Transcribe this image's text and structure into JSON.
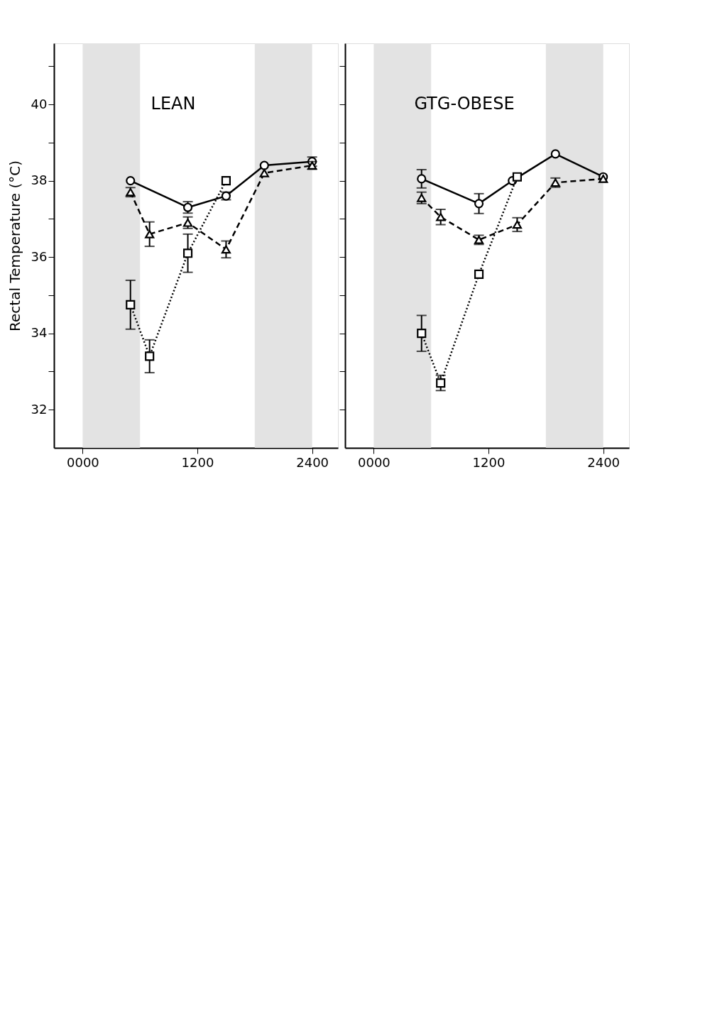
{
  "chart_data": [
    {
      "type": "line",
      "title": "LEAN",
      "ylabel": "Rectal Temperature (°C)",
      "xlim": [
        -300,
        2670
      ],
      "ylim": [
        31,
        41.6
      ],
      "xticks": [
        {
          "value": 0,
          "label": "0000"
        },
        1200,
        2400
      ],
      "yticks": [
        32,
        {
          "value": 33,
          "label": null
        },
        34,
        {
          "value": 35,
          "label": null
        },
        36,
        {
          "value": 37,
          "label": null
        },
        38,
        {
          "value": 39,
          "label": null
        },
        40,
        {
          "value": 41,
          "label": null
        }
      ],
      "grid": false,
      "bands": [
        {
          "axis": "x",
          "from": 0,
          "to": 600,
          "color": "#e3e3e3"
        },
        {
          "axis": "x",
          "from": 1800,
          "to": 2400,
          "color": "#e3e3e3"
        }
      ],
      "series": [
        {
          "color": "#000000",
          "marker": "circle",
          "line_style": "solid",
          "x": [
            500,
            1100,
            1500,
            1900,
            2400
          ],
          "values": [
            38.0,
            37.3,
            37.6,
            38.4,
            38.5
          ],
          "errors": [
            null,
            0.15,
            0.1,
            null,
            0.12
          ]
        },
        {
          "color": "#000000",
          "marker": "triangle",
          "line_style": "dashed",
          "x": [
            500,
            700,
            1100,
            1500,
            1900,
            2400
          ],
          "values": [
            37.7,
            36.6,
            36.9,
            36.2,
            38.2,
            38.4
          ],
          "errors": [
            0.12,
            0.32,
            0.15,
            0.22,
            null,
            0.1
          ]
        },
        {
          "color": "#000000",
          "marker": "square",
          "line_style": "dotted",
          "x": [
            500,
            700,
            1100,
            1500
          ],
          "values": [
            34.75,
            33.4,
            36.1,
            38.0
          ],
          "errors": [
            0.64,
            0.43,
            0.5,
            null
          ]
        }
      ]
    },
    {
      "type": "line",
      "title": "GTG-OBESE",
      "xlim": [
        -300,
        2670
      ],
      "ylim": [
        31,
        41.6
      ],
      "xticks": [
        {
          "value": 0,
          "label": "0000"
        },
        1200,
        2400
      ],
      "yticks": [
        32,
        33,
        34,
        35,
        36,
        37,
        38,
        39,
        40,
        41
      ],
      "tick_labels": "x",
      "grid": false,
      "bands": [
        {
          "axis": "x",
          "from": 0,
          "to": 600,
          "color": "#e3e3e3"
        },
        {
          "axis": "x",
          "from": 1800,
          "to": 2400,
          "color": "#e3e3e3"
        }
      ],
      "series": [
        {
          "color": "#000000",
          "marker": "circle",
          "line_style": "solid",
          "x": [
            500,
            1100,
            1450,
            1900,
            2400
          ],
          "values": [
            38.05,
            37.4,
            38.0,
            38.7,
            38.1
          ],
          "errors": [
            0.24,
            0.26,
            null,
            null,
            null
          ]
        },
        {
          "color": "#000000",
          "marker": "triangle",
          "line_style": "dashed",
          "x": [
            500,
            700,
            1100,
            1500,
            1900,
            2400
          ],
          "values": [
            37.55,
            37.05,
            36.45,
            36.85,
            37.95,
            38.05
          ],
          "errors": [
            0.15,
            0.2,
            0.12,
            0.18,
            0.12,
            null
          ]
        },
        {
          "color": "#000000",
          "marker": "square",
          "line_style": "dotted",
          "x": [
            500,
            700,
            1100,
            1500
          ],
          "values": [
            34.0,
            32.7,
            35.55,
            38.1
          ],
          "errors": [
            0.47,
            0.2,
            null,
            null
          ]
        }
      ]
    }
  ]
}
